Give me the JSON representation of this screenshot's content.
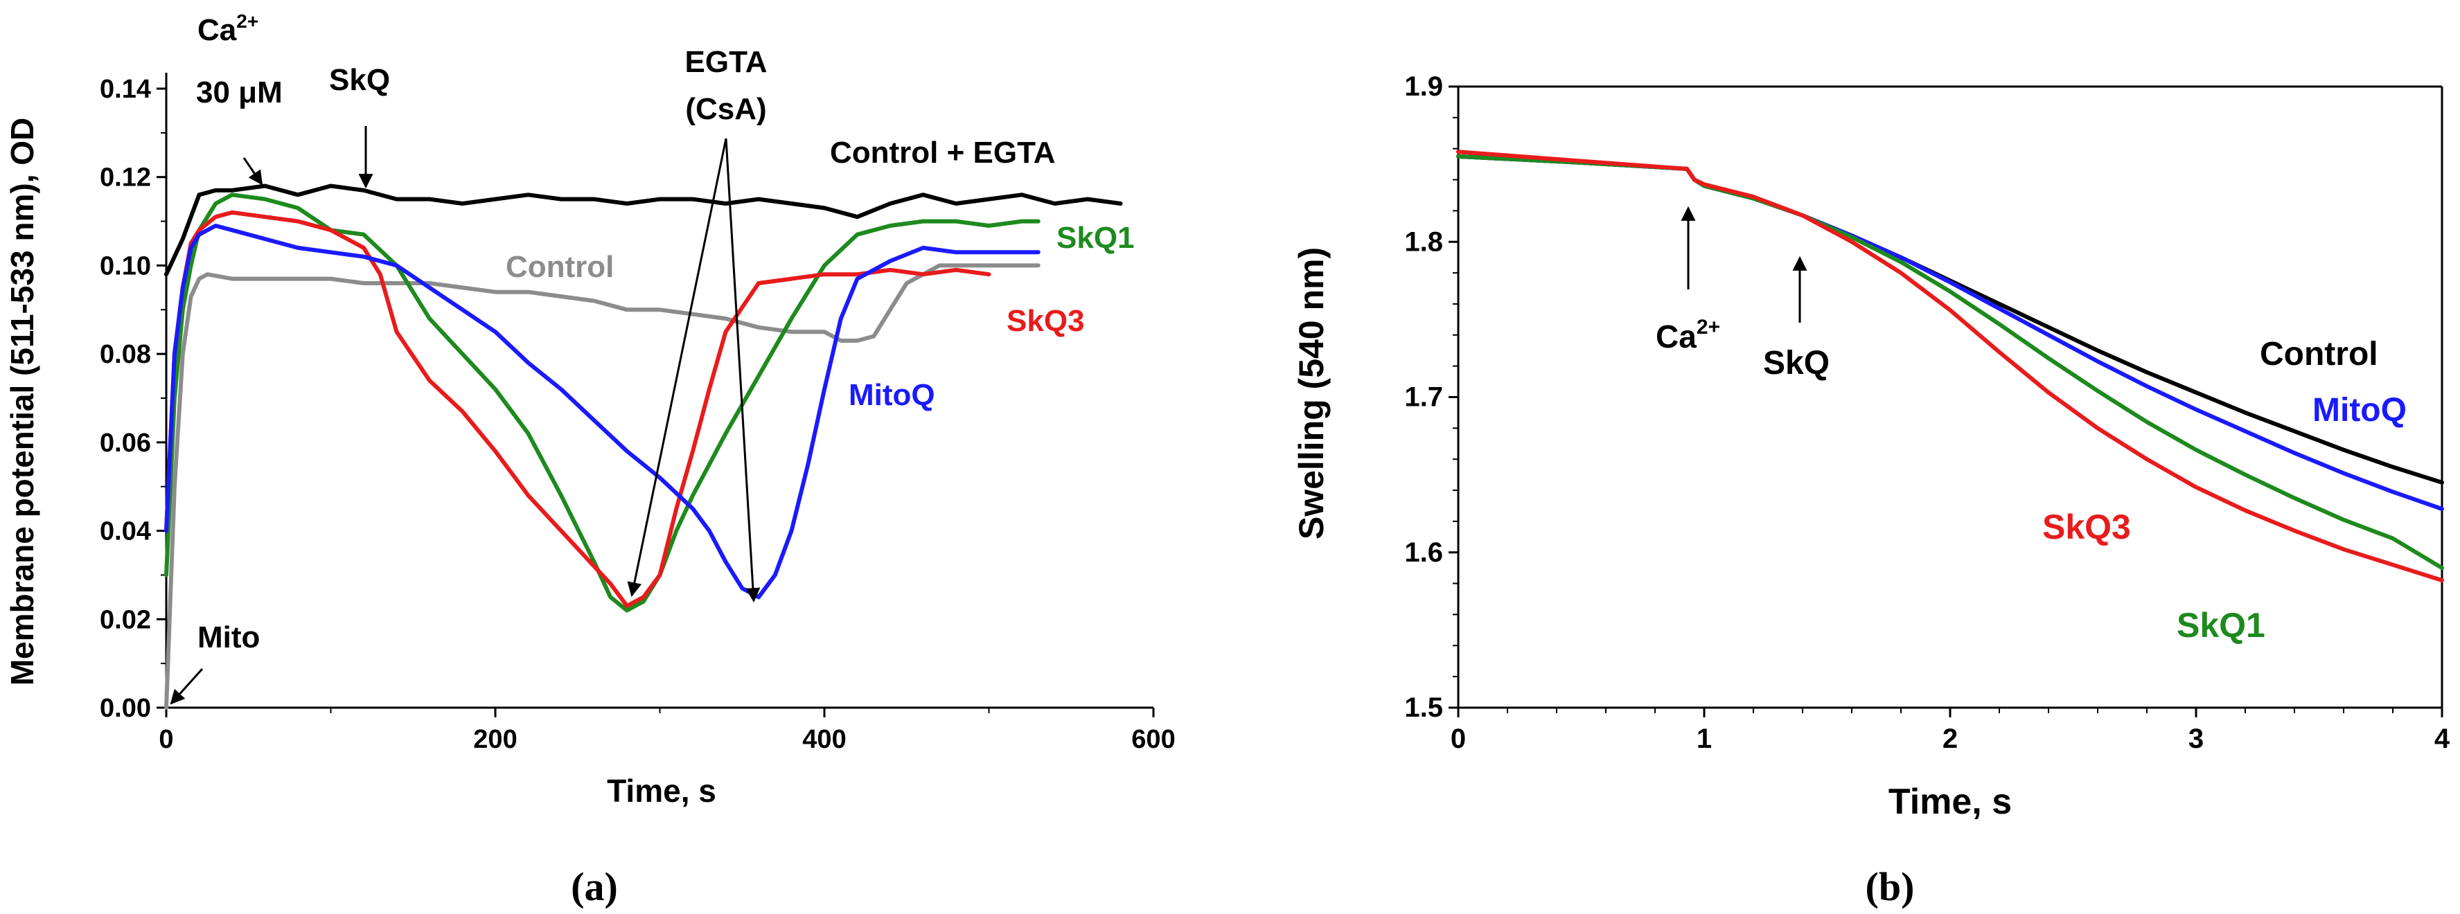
{
  "panel_labels": {
    "a": "(a)",
    "b": "(b)"
  },
  "chart_data": [
    {
      "panel": "a",
      "type": "line",
      "title": "",
      "xlabel": "Time, s",
      "ylabel": "Membrane potential (511-533 nm), OD",
      "xlim": [
        0,
        600
      ],
      "ylim": [
        0,
        0.14
      ],
      "xticks": [
        "0",
        "200",
        "400",
        "600"
      ],
      "yticks": [
        "0.00",
        "0.02",
        "0.04",
        "0.06",
        "0.08",
        "0.10",
        "0.12",
        "0.14"
      ],
      "series": [
        {
          "name": "Control + EGTA",
          "color": "#000000",
          "x": [
            0,
            5,
            10,
            15,
            20,
            30,
            40,
            60,
            80,
            100,
            120,
            140,
            160,
            180,
            200,
            220,
            240,
            260,
            280,
            300,
            320,
            340,
            360,
            380,
            400,
            420,
            440,
            460,
            480,
            500,
            520,
            540,
            560,
            580
          ],
          "y": [
            0.098,
            0.102,
            0.106,
            0.111,
            0.116,
            0.117,
            0.117,
            0.118,
            0.116,
            0.118,
            0.117,
            0.115,
            0.115,
            0.114,
            0.115,
            0.116,
            0.115,
            0.115,
            0.114,
            0.115,
            0.115,
            0.114,
            0.115,
            0.114,
            0.113,
            0.111,
            0.114,
            0.116,
            0.114,
            0.115,
            0.116,
            0.114,
            0.115,
            0.114
          ]
        },
        {
          "name": "Control",
          "color": "#8c8c8c",
          "x": [
            0,
            5,
            10,
            15,
            20,
            25,
            40,
            60,
            80,
            100,
            120,
            140,
            160,
            180,
            200,
            220,
            240,
            260,
            280,
            300,
            320,
            340,
            360,
            380,
            400,
            410,
            420,
            430,
            440,
            450,
            470,
            490,
            510,
            530
          ],
          "y": [
            0.0,
            0.05,
            0.08,
            0.093,
            0.097,
            0.098,
            0.097,
            0.097,
            0.097,
            0.097,
            0.096,
            0.096,
            0.096,
            0.095,
            0.094,
            0.094,
            0.093,
            0.092,
            0.09,
            0.09,
            0.089,
            0.088,
            0.086,
            0.085,
            0.085,
            0.083,
            0.083,
            0.084,
            0.09,
            0.096,
            0.1,
            0.1,
            0.1,
            0.1
          ]
        },
        {
          "name": "SkQ1",
          "color": "#1e8a1e",
          "x": [
            0,
            5,
            10,
            15,
            20,
            30,
            40,
            60,
            80,
            100,
            120,
            140,
            160,
            180,
            200,
            220,
            240,
            260,
            270,
            280,
            290,
            300,
            310,
            320,
            330,
            340,
            360,
            380,
            400,
            420,
            440,
            460,
            480,
            500,
            520,
            530
          ],
          "y": [
            0.03,
            0.07,
            0.09,
            0.1,
            0.108,
            0.114,
            0.116,
            0.115,
            0.113,
            0.108,
            0.107,
            0.1,
            0.088,
            0.08,
            0.072,
            0.062,
            0.048,
            0.033,
            0.025,
            0.022,
            0.024,
            0.03,
            0.04,
            0.048,
            0.055,
            0.062,
            0.075,
            0.088,
            0.1,
            0.107,
            0.109,
            0.11,
            0.11,
            0.109,
            0.11,
            0.11
          ]
        },
        {
          "name": "SkQ3",
          "color": "#e81c1c",
          "x": [
            0,
            5,
            10,
            15,
            20,
            30,
            40,
            60,
            80,
            100,
            120,
            130,
            140,
            160,
            180,
            200,
            220,
            240,
            260,
            270,
            280,
            290,
            300,
            310,
            320,
            330,
            340,
            360,
            380,
            400,
            420,
            440,
            460,
            480,
            500
          ],
          "y": [
            0.04,
            0.08,
            0.095,
            0.105,
            0.108,
            0.111,
            0.112,
            0.111,
            0.11,
            0.108,
            0.104,
            0.098,
            0.085,
            0.074,
            0.067,
            0.058,
            0.048,
            0.04,
            0.032,
            0.028,
            0.023,
            0.025,
            0.03,
            0.045,
            0.058,
            0.072,
            0.085,
            0.096,
            0.097,
            0.098,
            0.098,
            0.099,
            0.098,
            0.099,
            0.098
          ]
        },
        {
          "name": "MitoQ",
          "color": "#1a1aff",
          "x": [
            0,
            5,
            10,
            15,
            20,
            30,
            40,
            60,
            80,
            100,
            120,
            140,
            160,
            180,
            200,
            220,
            240,
            260,
            280,
            300,
            320,
            330,
            340,
            350,
            360,
            370,
            380,
            390,
            400,
            410,
            420,
            440,
            460,
            480,
            500,
            520,
            530
          ],
          "y": [
            0.04,
            0.08,
            0.095,
            0.104,
            0.107,
            0.109,
            0.108,
            0.106,
            0.104,
            0.103,
            0.102,
            0.1,
            0.095,
            0.09,
            0.085,
            0.078,
            0.072,
            0.065,
            0.058,
            0.052,
            0.045,
            0.04,
            0.033,
            0.027,
            0.025,
            0.03,
            0.04,
            0.055,
            0.072,
            0.088,
            0.097,
            0.101,
            0.104,
            0.103,
            0.103,
            0.103,
            0.103
          ]
        }
      ],
      "annotations": [
        {
          "id": "ca",
          "text_line1": "Ca",
          "superscript": "2+",
          "text_line2": "30 μM",
          "x": 60,
          "y": 0.118
        },
        {
          "id": "skq",
          "text": "SkQ",
          "x": 122,
          "y": 0.116
        },
        {
          "id": "egta",
          "text_line1": "EGTA",
          "text_line2": "(CsA)",
          "targets": [
            [
              283,
              0.023
            ],
            [
              355,
              0.024
            ]
          ]
        },
        {
          "id": "mito",
          "text": "Mito",
          "x": 2,
          "y": 0.0
        }
      ],
      "series_labels": {
        "Control + EGTA": "Control + EGTA",
        "Control": "Control",
        "SkQ1": "SkQ1",
        "SkQ3": "SkQ3",
        "MitoQ": "MitoQ"
      }
    },
    {
      "panel": "b",
      "type": "line",
      "title": "",
      "xlabel": "Time, s",
      "ylabel": "Swelling (540 nm)",
      "xlim": [
        0,
        4
      ],
      "ylim": [
        1.5,
        1.9
      ],
      "xticks": [
        "0",
        "1",
        "2",
        "3",
        "4"
      ],
      "yticks": [
        "1.5",
        "1.6",
        "1.7",
        "1.8",
        "1.9"
      ],
      "series": [
        {
          "name": "Control",
          "color": "#000000",
          "x": [
            0,
            0.5,
            0.93,
            0.96,
            1.0,
            1.2,
            1.4,
            1.6,
            1.8,
            2.0,
            2.2,
            2.4,
            2.6,
            2.8,
            3.0,
            3.2,
            3.4,
            3.6,
            3.8,
            4.0
          ],
          "y": [
            1.855,
            1.851,
            1.847,
            1.84,
            1.836,
            1.828,
            1.817,
            1.804,
            1.79,
            1.775,
            1.76,
            1.745,
            1.73,
            1.716,
            1.703,
            1.69,
            1.678,
            1.666,
            1.655,
            1.645
          ]
        },
        {
          "name": "MitoQ",
          "color": "#1a1aff",
          "x": [
            0,
            0.5,
            0.93,
            0.96,
            1.0,
            1.2,
            1.4,
            1.6,
            1.8,
            2.0,
            2.2,
            2.4,
            2.6,
            2.8,
            3.0,
            3.2,
            3.4,
            3.6,
            3.8,
            4.0
          ],
          "y": [
            1.855,
            1.851,
            1.847,
            1.84,
            1.836,
            1.828,
            1.817,
            1.804,
            1.79,
            1.774,
            1.757,
            1.74,
            1.723,
            1.707,
            1.692,
            1.678,
            1.664,
            1.651,
            1.639,
            1.628
          ]
        },
        {
          "name": "SkQ1",
          "color": "#1e8a1e",
          "x": [
            0,
            0.5,
            0.93,
            0.96,
            1.0,
            1.2,
            1.4,
            1.6,
            1.8,
            2.0,
            2.2,
            2.4,
            2.6,
            2.8,
            3.0,
            3.2,
            3.4,
            3.6,
            3.8,
            4.0
          ],
          "y": [
            1.855,
            1.851,
            1.847,
            1.84,
            1.836,
            1.828,
            1.817,
            1.803,
            1.787,
            1.768,
            1.747,
            1.725,
            1.704,
            1.684,
            1.666,
            1.65,
            1.635,
            1.621,
            1.609,
            1.59
          ]
        },
        {
          "name": "SkQ3",
          "color": "#e81c1c",
          "x": [
            0,
            0.5,
            0.93,
            0.96,
            1.0,
            1.2,
            1.4,
            1.6,
            1.8,
            2.0,
            2.2,
            2.4,
            2.6,
            2.8,
            3.0,
            3.2,
            3.4,
            3.6,
            3.8,
            4.0
          ],
          "y": [
            1.858,
            1.852,
            1.847,
            1.84,
            1.837,
            1.829,
            1.817,
            1.8,
            1.78,
            1.756,
            1.729,
            1.703,
            1.68,
            1.66,
            1.642,
            1.627,
            1.614,
            1.602,
            1.592,
            1.582
          ]
        }
      ],
      "annotations": [
        {
          "id": "ca",
          "text": "Ca",
          "superscript": "2+",
          "x": 0.93,
          "y": 1.845
        },
        {
          "id": "skq",
          "text": "SkQ",
          "x": 1.37,
          "y": 1.82
        }
      ],
      "series_labels": {
        "Control": "Control",
        "MitoQ": "MitoQ",
        "SkQ3": "SkQ3",
        "SkQ1": "SkQ1"
      }
    }
  ]
}
